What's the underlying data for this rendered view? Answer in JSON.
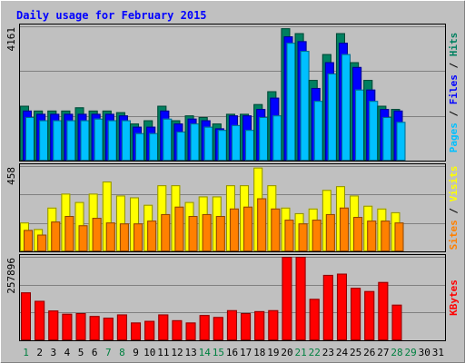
{
  "title": "Daily usage for February 2015",
  "colors": {
    "background": "#c0c0c0",
    "title": "#0000ff",
    "border_light": "#ffffff",
    "border_dark": "#808080",
    "frame": "#000000",
    "grid": "#808080",
    "hits": "#008060",
    "files": "#0000ff",
    "pages": "#00c0ff",
    "visits": "#ffff00",
    "sites": "#ff8000",
    "kbytes": "#ff0000",
    "weekend_day": "#008040",
    "weekday": "#000000"
  },
  "chart_data": [
    {
      "type": "bar",
      "panel": "requests",
      "ymax_label": "4161",
      "ylim": [
        0,
        4161
      ],
      "grid": true,
      "label_parts": [
        {
          "text": "Pages",
          "color": "#00c0ff"
        },
        {
          "text": " / ",
          "color": "#000000"
        },
        {
          "text": "Files",
          "color": "#0000ff"
        },
        {
          "text": " / ",
          "color": "#000000"
        },
        {
          "text": "Hits",
          "color": "#008060"
        }
      ],
      "categories": [
        "1",
        "2",
        "3",
        "4",
        "5",
        "6",
        "7",
        "8",
        "9",
        "10",
        "11",
        "12",
        "13",
        "14",
        "15",
        "16",
        "17",
        "18",
        "19",
        "20",
        "21",
        "22",
        "23",
        "24",
        "25",
        "26",
        "27",
        "28",
        "29",
        "30",
        "31"
      ],
      "series": [
        {
          "name": "Hits",
          "color": "#008060",
          "values": [
            1700,
            1550,
            1550,
            1550,
            1650,
            1550,
            1550,
            1500,
            1150,
            1250,
            1700,
            1250,
            1400,
            1350,
            1150,
            1450,
            1450,
            1750,
            2150,
            4100,
            3950,
            2500,
            3300,
            3950,
            3050,
            2500,
            1700,
            1600,
            null,
            null,
            null
          ]
        },
        {
          "name": "Files",
          "color": "#0000ff",
          "values": [
            1550,
            1450,
            1450,
            1450,
            1450,
            1450,
            1450,
            1400,
            1050,
            1050,
            1550,
            1150,
            1300,
            1250,
            1000,
            1400,
            1400,
            1600,
            1950,
            3850,
            3700,
            2250,
            3050,
            3650,
            2900,
            2200,
            1600,
            1550,
            null,
            null,
            null
          ]
        },
        {
          "name": "Pages",
          "color": "#00c0ff",
          "values": [
            1350,
            1250,
            1250,
            1250,
            1250,
            1300,
            1250,
            1250,
            850,
            850,
            1300,
            900,
            1150,
            1050,
            950,
            1100,
            950,
            1350,
            1400,
            3650,
            3400,
            1850,
            2700,
            3300,
            2200,
            1850,
            1350,
            1200,
            null,
            null,
            null
          ]
        }
      ]
    },
    {
      "type": "bar",
      "panel": "visitors",
      "ymax_label": "458",
      "ylim": [
        0,
        458
      ],
      "grid": true,
      "label_parts": [
        {
          "text": "Sites",
          "color": "#ff8000"
        },
        {
          "text": " / ",
          "color": "#000000"
        },
        {
          "text": "Visits",
          "color": "#ffff00"
        }
      ],
      "categories": [
        "1",
        "2",
        "3",
        "4",
        "5",
        "6",
        "7",
        "8",
        "9",
        "10",
        "11",
        "12",
        "13",
        "14",
        "15",
        "16",
        "17",
        "18",
        "19",
        "20",
        "21",
        "22",
        "23",
        "24",
        "25",
        "26",
        "27",
        "28",
        "29",
        "30",
        "31"
      ],
      "series": [
        {
          "name": "Visits",
          "color": "#ffff00",
          "values": [
            155,
            120,
            235,
            310,
            265,
            310,
            375,
            300,
            290,
            250,
            355,
            355,
            265,
            295,
            295,
            355,
            355,
            450,
            355,
            235,
            205,
            230,
            330,
            350,
            300,
            245,
            230,
            210,
            null,
            null,
            null
          ]
        },
        {
          "name": "Sites",
          "color": "#ff8000",
          "values": [
            115,
            90,
            160,
            190,
            140,
            180,
            155,
            150,
            150,
            165,
            200,
            240,
            190,
            200,
            190,
            230,
            240,
            285,
            230,
            170,
            150,
            170,
            200,
            235,
            185,
            165,
            165,
            155,
            null,
            null,
            null
          ]
        }
      ]
    },
    {
      "type": "bar",
      "panel": "traffic",
      "ymax_label": "257896",
      "ylim": [
        0,
        257896
      ],
      "grid": true,
      "label_parts": [
        {
          "text": "KBytes",
          "color": "#ff0000"
        }
      ],
      "categories": [
        "1",
        "2",
        "3",
        "4",
        "5",
        "6",
        "7",
        "8",
        "9",
        "10",
        "11",
        "12",
        "13",
        "14",
        "15",
        "16",
        "17",
        "18",
        "19",
        "20",
        "21",
        "22",
        "23",
        "24",
        "25",
        "26",
        "27",
        "28",
        "29",
        "30",
        "31"
      ],
      "series": [
        {
          "name": "KBytes",
          "color": "#ff0000",
          "values": [
            148000,
            122000,
            92000,
            82000,
            84000,
            75000,
            70000,
            80000,
            55000,
            60000,
            80000,
            62000,
            55000,
            78000,
            72000,
            93000,
            84000,
            90000,
            93000,
            262000,
            262000,
            128000,
            202000,
            206000,
            162000,
            152000,
            180000,
            110000,
            null,
            null,
            null
          ]
        }
      ]
    }
  ],
  "x_axis": {
    "days": [
      "1",
      "2",
      "3",
      "4",
      "5",
      "6",
      "7",
      "8",
      "9",
      "10",
      "11",
      "12",
      "13",
      "14",
      "15",
      "16",
      "17",
      "18",
      "19",
      "20",
      "21",
      "22",
      "23",
      "24",
      "25",
      "26",
      "27",
      "28",
      "29",
      "30",
      "31"
    ],
    "weekend_days": [
      "1",
      "7",
      "8",
      "14",
      "15",
      "21",
      "22",
      "28",
      "29"
    ]
  }
}
